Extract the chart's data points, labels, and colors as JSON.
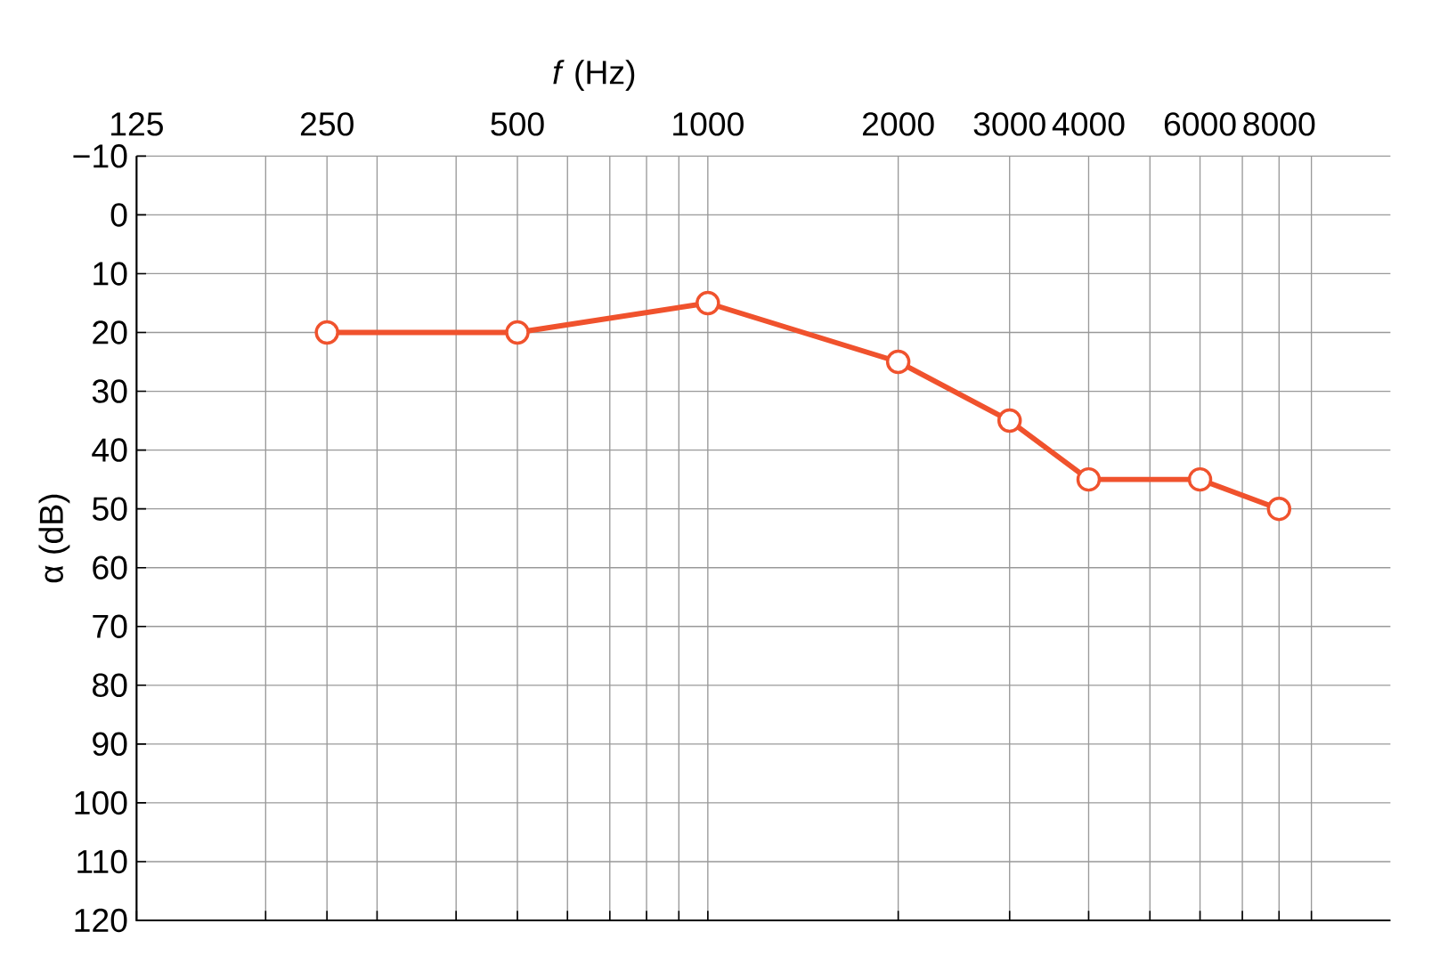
{
  "chart_data": {
    "type": "line",
    "xlabel": "*f* (Hz)",
    "ylabel": "α (dB)",
    "log": "x",
    "x": [
      250,
      500,
      1000,
      2000,
      3000,
      4000,
      6000,
      8000
    ],
    "series": [
      {
        "color": "#f0522d",
        "values": [
          20,
          20,
          15,
          25,
          35,
          45,
          45,
          50
        ]
      }
    ],
    "marker": "circle",
    "line_style": "solid",
    "grid": true,
    "xlim": [
      125,
      12000
    ],
    "xticks": [
      125,
      {
        "value": 200,
        "label": null
      },
      250,
      {
        "value": 300,
        "label": null
      },
      {
        "value": 400,
        "label": null
      },
      500,
      {
        "value": 600,
        "label": null
      },
      {
        "value": 700,
        "label": null
      },
      {
        "value": 800,
        "label": null
      },
      {
        "value": 900,
        "label": null
      },
      1000,
      2000,
      3000,
      4000,
      {
        "value": 5000,
        "label": null
      },
      6000,
      {
        "value": 7000,
        "label": null
      },
      8000,
      {
        "value": 9000,
        "label": null
      }
    ],
    "ylim": [
      120,
      -10
    ],
    "yticks": [
      {
        "value": -10,
        "label": "−10"
      },
      0,
      10,
      20,
      30,
      40,
      50,
      60,
      70,
      80,
      90,
      100,
      110,
      120
    ]
  }
}
